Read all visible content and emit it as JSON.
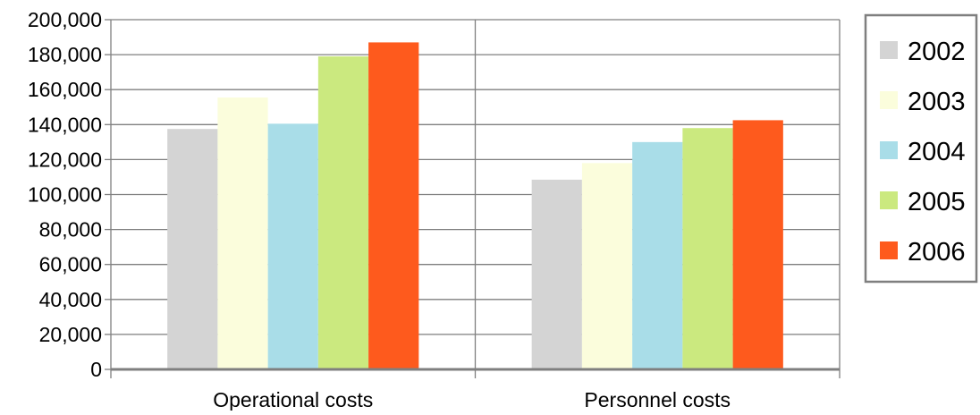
{
  "chart_data": {
    "type": "bar",
    "title": "",
    "xlabel": "",
    "ylabel": "",
    "categories": [
      "Operational costs",
      "Personnel costs"
    ],
    "ylim": [
      0,
      200000
    ],
    "yticks": [
      0,
      20000,
      40000,
      60000,
      80000,
      100000,
      120000,
      140000,
      160000,
      180000,
      200000
    ],
    "ytick_labels": [
      "0",
      "20,000",
      "40,000",
      "60,000",
      "80,000",
      "100,000",
      "120,000",
      "140,000",
      "160,000",
      "180,000",
      "200,000"
    ],
    "grid": true,
    "legend_position": "right",
    "series": [
      {
        "name": "2002",
        "color": "#d4d4d4",
        "values": [
          137500,
          108500
        ]
      },
      {
        "name": "2003",
        "color": "#fbfddc",
        "values": [
          155500,
          118000
        ]
      },
      {
        "name": "2004",
        "color": "#a9dde8",
        "values": [
          140500,
          130000
        ]
      },
      {
        "name": "2005",
        "color": "#cbe97f",
        "values": [
          179000,
          138000
        ]
      },
      {
        "name": "2006",
        "color": "#fe5a1d",
        "values": [
          187000,
          142500
        ]
      }
    ]
  }
}
